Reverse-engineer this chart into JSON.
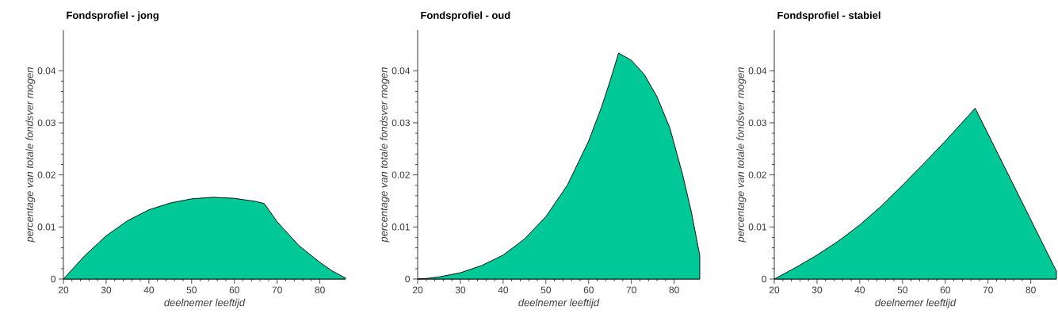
{
  "chart_data": [
    {
      "type": "area",
      "title": "Fondsprofiel - jong",
      "xlabel": "deelnemer leeftijd",
      "ylabel": "percentage van totale fondsver mogen",
      "xlim": [
        20,
        86
      ],
      "ylim": [
        0,
        0.0478
      ],
      "xticks": [
        20,
        30,
        40,
        50,
        60,
        70,
        80
      ],
      "yticks": [
        0,
        0.01,
        0.02,
        0.03,
        0.04
      ],
      "grid": false,
      "series": [
        {
          "color": "#00c896",
          "x": [
            20,
            25,
            30,
            35,
            40,
            45,
            50,
            55,
            60,
            65,
            67,
            70,
            75,
            80,
            83,
            86
          ],
          "values": [
            0,
            0.0045,
            0.0083,
            0.0112,
            0.0133,
            0.0146,
            0.0154,
            0.0157,
            0.0155,
            0.0149,
            0.0145,
            0.011,
            0.0065,
            0.0032,
            0.0015,
            0.0002
          ]
        }
      ]
    },
    {
      "type": "area",
      "title": "Fondsprofiel - oud",
      "xlabel": "deelnemer leeftijd",
      "ylabel": "percentage van totale fondsver mogen",
      "xlim": [
        20,
        86
      ],
      "ylim": [
        0,
        0.0478
      ],
      "xticks": [
        20,
        30,
        40,
        50,
        60,
        70,
        80
      ],
      "yticks": [
        0,
        0.01,
        0.02,
        0.03,
        0.04
      ],
      "grid": false,
      "series": [
        {
          "color": "#00c896",
          "x": [
            20,
            22,
            25,
            30,
            35,
            40,
            45,
            50,
            55,
            60,
            63,
            65,
            67,
            70,
            73,
            76,
            79,
            82,
            84,
            86
          ],
          "values": [
            0,
            0.0001,
            0.0004,
            0.0012,
            0.0026,
            0.0046,
            0.0077,
            0.012,
            0.018,
            0.0265,
            0.033,
            0.038,
            0.0434,
            0.042,
            0.0393,
            0.035,
            0.029,
            0.02,
            0.013,
            0.0045
          ]
        }
      ]
    },
    {
      "type": "area",
      "title": "Fondsprofiel - stabiel",
      "xlabel": "deelnemer leeftijd",
      "ylabel": "percentage van totale fondsver mogen",
      "xlim": [
        20,
        86
      ],
      "ylim": [
        0,
        0.0478
      ],
      "xticks": [
        20,
        30,
        40,
        50,
        60,
        70,
        80
      ],
      "yticks": [
        0,
        0.01,
        0.02,
        0.03,
        0.04
      ],
      "grid": false,
      "series": [
        {
          "color": "#00c896",
          "x": [
            20,
            25,
            30,
            35,
            40,
            45,
            50,
            55,
            60,
            65,
            67,
            86
          ],
          "values": [
            0,
            0.0022,
            0.0046,
            0.0073,
            0.0104,
            0.014,
            0.018,
            0.0222,
            0.0265,
            0.031,
            0.0328,
            0.0015
          ]
        }
      ]
    }
  ]
}
